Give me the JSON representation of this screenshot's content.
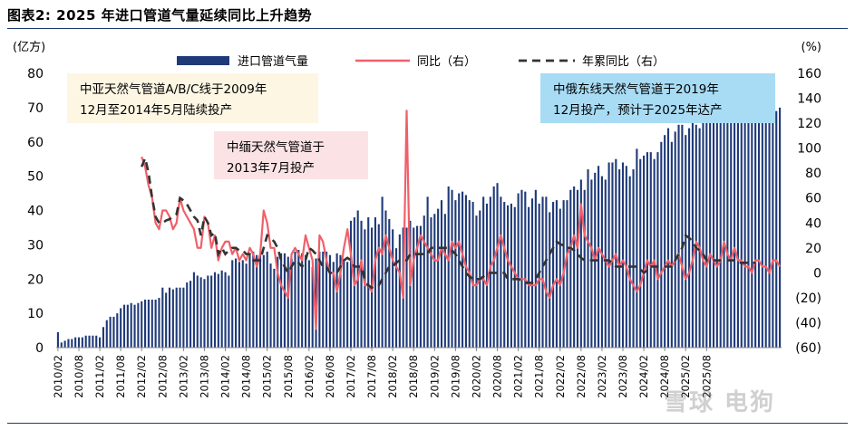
{
  "title": "图表2:  2025 年进口管道气量延续同比上升趋势",
  "watermark": "雪球 电狗",
  "chart_data": {
    "type": "bar+line",
    "left_axis": {
      "label": "(亿方)",
      "ylim": [
        0,
        80
      ],
      "ticks": [
        0,
        10,
        20,
        30,
        40,
        50,
        60,
        70,
        80
      ]
    },
    "right_axis": {
      "label": "(%)",
      "ylim": [
        -60,
        160
      ],
      "ticks": [
        -60,
        -40,
        -20,
        0,
        20,
        40,
        60,
        80,
        100,
        120,
        140,
        160
      ],
      "tick_labels": [
        "(60)",
        "(40)",
        "(20)",
        "0",
        "20",
        "40",
        "60",
        "80",
        "100",
        "120",
        "140",
        "160"
      ]
    },
    "x_tick_labels": [
      "2010/02",
      "2010/08",
      "2011/02",
      "2011/08",
      "2012/02",
      "2012/08",
      "2013/02",
      "2013/08",
      "2014/02",
      "2014/08",
      "2015/02",
      "2015/08",
      "2016/02",
      "2016/08",
      "2017/02",
      "2017/08",
      "2018/02",
      "2018/08",
      "2019/02",
      "2019/08",
      "2020/02",
      "2020/08",
      "2021/02",
      "2021/08",
      "2022/02",
      "2022/08",
      "2023/02",
      "2023/08",
      "2024/02",
      "2024/08",
      "2025/02",
      "2025/08"
    ],
    "legend": [
      "进口管道气量",
      "同比（右）",
      "年累同比（右）"
    ],
    "colors": {
      "bar": "#1f3a78",
      "yoy": "#f0606a",
      "ytd": "#333333"
    },
    "series": [
      {
        "name": "进口管道气量",
        "axis": "left",
        "type": "bar",
        "values": [
          4.5,
          1.5,
          2.0,
          2.5,
          2.5,
          3.0,
          3.0,
          3.0,
          3.5,
          3.5,
          3.5,
          3.5,
          3.0,
          6.0,
          8.0,
          9.0,
          9.0,
          10.0,
          11.5,
          12.5,
          12.5,
          13.0,
          12.5,
          13.0,
          13.5,
          14.0,
          14.0,
          14.0,
          14.0,
          14.5,
          17.5,
          16.0,
          17.5,
          17.0,
          17.5,
          17.5,
          17.5,
          19.0,
          19.5,
          22.0,
          21.0,
          20.5,
          20.0,
          21.0,
          21.0,
          22.0,
          21.5,
          22.5,
          22.0,
          21.0,
          25.5,
          26.0,
          25.0,
          25.5,
          24.5,
          27.0,
          28.0,
          27.0,
          27.5,
          27.0,
          28.0,
          24.5,
          23.0,
          26.5,
          27.5,
          27.5,
          26.5,
          26.0,
          28.0,
          28.5,
          27.5,
          27.0,
          25.5,
          23.5,
          26.0,
          28.0,
          28.0,
          28.0,
          27.0,
          25.0,
          27.5,
          27.0,
          25.5,
          25.0,
          37.0,
          38.0,
          40.0,
          37.0,
          34.5,
          38.0,
          35.0,
          38.0,
          36.0,
          44.0,
          40.0,
          37.5,
          34.5,
          29.0,
          33.0,
          35.0,
          35.0,
          37.0,
          35.0,
          35.5,
          35.5,
          38.5,
          44.0,
          38.0,
          39.0,
          40.5,
          43.0,
          39.0,
          47.0,
          46.0,
          43.0,
          45.0,
          45.5,
          44.5,
          43.0,
          42.5,
          38.5,
          40.0,
          44.0,
          42.0,
          44.0,
          47.0,
          48.0,
          44.0,
          42.5,
          41.5,
          42.0,
          41.0,
          45.0,
          46.0,
          45.5,
          41.0,
          43.5,
          46.0,
          42.0,
          44.0,
          44.0,
          39.5,
          42.5,
          43.0,
          40.5,
          43.0,
          43.0,
          46.0,
          47.0,
          46.0,
          49.0,
          46.0,
          52.0,
          49.0,
          51.0,
          53.0,
          50.0,
          49.0,
          54.0,
          54.0,
          55.0,
          52.0,
          54.0,
          53.0,
          50.0,
          52.0,
          58.0,
          55.0,
          56.0,
          57.0,
          57.0,
          55.0,
          57.0,
          60.0,
          62.0,
          64.0,
          60.0,
          63.0,
          65.0,
          65.0,
          62.0,
          64.0,
          66.0,
          65.0,
          64.0,
          67.0,
          68.0,
          70.0,
          69.0,
          71.0,
          68.0,
          70.0,
          73.0,
          74.0,
          73.0,
          72.0,
          70.0,
          72.0,
          73.0,
          74.0,
          76.0,
          72.0,
          70.0,
          72.0,
          74.0,
          71.0,
          69.0,
          70.0
        ]
      },
      {
        "name": "同比（右）",
        "axis": "right",
        "type": "line",
        "values": [
          null,
          null,
          null,
          null,
          null,
          null,
          null,
          null,
          null,
          null,
          null,
          null,
          null,
          null,
          null,
          null,
          null,
          null,
          null,
          null,
          null,
          null,
          null,
          null,
          93,
          85,
          70,
          60,
          40,
          35,
          50,
          50,
          45,
          35,
          40,
          60,
          50,
          45,
          40,
          35,
          20,
          20,
          45,
          40,
          20,
          30,
          10,
          20,
          25,
          25,
          15,
          20,
          10,
          15,
          10,
          20,
          15,
          5,
          15,
          50,
          40,
          20,
          20,
          0,
          -10,
          -15,
          -20,
          15,
          20,
          15,
          10,
          30,
          20,
          10,
          -45,
          30,
          25,
          10,
          0,
          0,
          -15,
          0,
          20,
          35,
          15,
          -10,
          -5,
          10,
          -10,
          -10,
          -15,
          10,
          20,
          15,
          30,
          20,
          10,
          5,
          0,
          -20,
          130,
          -10,
          10,
          20,
          30,
          25,
          20,
          15,
          10,
          10,
          20,
          15,
          10,
          25,
          20,
          25,
          15,
          5,
          0,
          -10,
          -10,
          -5,
          -5,
          -10,
          5,
          10,
          20,
          30,
          20,
          10,
          5,
          0,
          -5,
          -5,
          -5,
          -10,
          -10,
          -10,
          -5,
          -5,
          -15,
          -20,
          -10,
          -5,
          -10,
          0,
          15,
          20,
          30,
          20,
          55,
          30,
          25,
          20,
          10,
          20,
          15,
          10,
          5,
          10,
          15,
          5,
          10,
          5,
          -5,
          -10,
          -15,
          -10,
          0,
          10,
          5,
          10,
          -5,
          0,
          5,
          10,
          5,
          10,
          15,
          5,
          -5,
          0,
          10,
          25,
          20,
          10,
          5,
          15,
          10,
          5,
          10,
          25,
          15,
          10,
          20,
          10,
          10,
          5,
          5,
          0,
          10,
          10,
          5,
          5,
          0,
          10,
          10,
          5
        ]
      },
      {
        "name": "年累同比（右）",
        "axis": "right",
        "type": "dashed-line",
        "values": [
          null,
          null,
          null,
          null,
          null,
          null,
          null,
          null,
          null,
          null,
          null,
          null,
          null,
          null,
          null,
          null,
          null,
          null,
          null,
          null,
          null,
          null,
          null,
          null,
          85,
          92,
          80,
          60,
          45,
          40,
          40,
          42,
          43,
          45,
          47,
          60,
          58,
          55,
          50,
          45,
          42,
          30,
          45,
          40,
          30,
          32,
          15,
          20,
          15,
          18,
          20,
          20,
          18,
          18,
          15,
          15,
          10,
          10,
          10,
          20,
          30,
          28,
          25,
          20,
          10,
          5,
          0,
          5,
          10,
          8,
          5,
          10,
          20,
          18,
          15,
          10,
          5,
          5,
          0,
          0,
          0,
          5,
          10,
          12,
          10,
          5,
          5,
          5,
          -5,
          -10,
          -12,
          -10,
          -10,
          -5,
          0,
          5,
          5,
          8,
          10,
          10,
          10,
          15,
          15,
          15,
          15,
          15,
          15,
          20,
          20,
          20,
          20,
          20,
          20,
          18,
          15,
          10,
          5,
          0,
          -3,
          -5,
          -5,
          -5,
          -3,
          -1,
          0,
          0,
          0,
          0,
          0,
          -5,
          -5,
          -5,
          -5,
          -6,
          -8,
          -8,
          -8,
          -5,
          0,
          5,
          10,
          15,
          20,
          25,
          23,
          22,
          20,
          20,
          18,
          15,
          12,
          10,
          10,
          10,
          10,
          10,
          10,
          10,
          10,
          8,
          5,
          5,
          5,
          5,
          5,
          5,
          5,
          3,
          0,
          2,
          5,
          5,
          5,
          5,
          5,
          5,
          5,
          10,
          15,
          20,
          30,
          28,
          25,
          20,
          18,
          15,
          10,
          10,
          10,
          10,
          10,
          10,
          10,
          10,
          10,
          8,
          8,
          8,
          8,
          8,
          8
        ]
      }
    ],
    "annotations": [
      {
        "text": [
          "中亚天然气管道A/B/C线于2009年",
          "12月至2014年5月陆续投产"
        ],
        "bg": "#fdf6e3"
      },
      {
        "text": [
          "中缅天然气管道于",
          "2013年7月投产"
        ],
        "bg": "#fbe3e5"
      },
      {
        "text": [
          "中俄东线天然气管道于2019年",
          "12月投产，预计于2025年达产"
        ],
        "bg": "#a8dcf5"
      }
    ]
  }
}
